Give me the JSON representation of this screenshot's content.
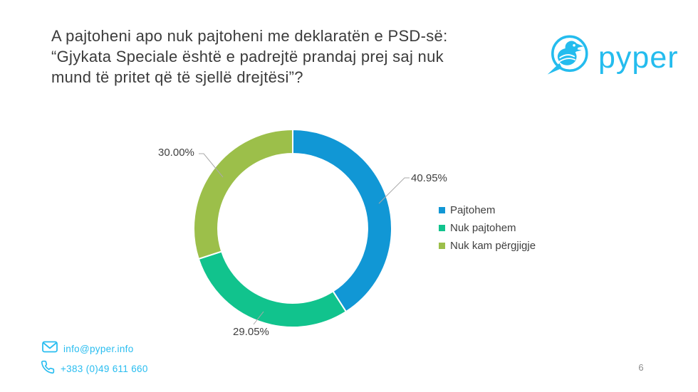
{
  "page": {
    "title_lines": [
      "A pajtoheni apo nuk pajtoheni me deklaratën e PSD-së:",
      "“Gjykata Speciale është e padrejtë prandaj prej saj nuk",
      "mund të pritet që të sjellë drejtësi”?"
    ],
    "page_number": "6"
  },
  "brand": {
    "logo_text": "pyper",
    "brand_color": "#24bcee"
  },
  "contact": {
    "email": "info@pyper.info",
    "phone": "+383 (0)49 611 660"
  },
  "chart_data": {
    "type": "pie",
    "subtype": "donut",
    "title": "",
    "categories": [
      "Pajtohem",
      "Nuk pajtohem",
      "Nuk kam përgjigje"
    ],
    "values": [
      40.95,
      29.05,
      30.0
    ],
    "labels": [
      "40.95%",
      "29.05%",
      "30.00%"
    ],
    "colors": [
      "#1197d5",
      "#11c38d",
      "#9cbf4a"
    ],
    "start_angle_deg": 0,
    "direction": "clockwise",
    "inner_radius_ratio": 0.755,
    "legend_position": "right",
    "leader_line_color": "#a9a9a9"
  }
}
